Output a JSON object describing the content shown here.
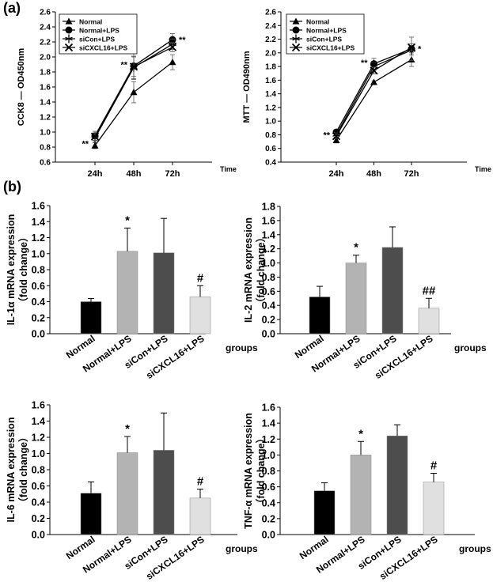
{
  "panels": {
    "a": "(a)",
    "b": "(b)"
  },
  "colors": {
    "normal": "#000000",
    "normal_lps": "#b3b3b3",
    "sicon_lps": "#4d4d4d",
    "sicxcl16_lps": "#e0e0e0"
  },
  "chart_data": [
    {
      "type": "line",
      "ylabel": "CCK8 — OD450nm",
      "xlabel": "Time",
      "categories": [
        "24h",
        "48h",
        "72h"
      ],
      "ylim": [
        0.6,
        2.6
      ],
      "yticks": [
        "0.6",
        "0.8",
        "1.0",
        "1.2",
        "1.4",
        "1.6",
        "1.8",
        "2.0",
        "2.2",
        "2.4",
        "2.6"
      ],
      "legend_position": "top-left",
      "series": [
        {
          "name": "Normal",
          "marker": "triangle",
          "values": [
            0.82,
            1.53,
            1.93
          ],
          "errors": [
            0.04,
            0.14,
            0.1
          ]
        },
        {
          "name": "Normal+LPS",
          "marker": "circle",
          "values": [
            0.95,
            1.88,
            2.23
          ],
          "errors": [
            0.06,
            0.18,
            0.08
          ]
        },
        {
          "name": "siCon+LPS",
          "marker": "star",
          "values": [
            0.92,
            1.86,
            2.17
          ],
          "errors": [
            0.05,
            0.15,
            0.07
          ]
        },
        {
          "name": "siCXCL16+LPS",
          "marker": "x",
          "values": [
            0.94,
            1.87,
            2.13
          ],
          "errors": [
            0.05,
            0.13,
            0.06
          ]
        }
      ],
      "annotations": [
        {
          "text": "**",
          "x": "24h",
          "y": 0.85,
          "side": "left"
        },
        {
          "text": "**",
          "x": "48h",
          "y": 1.9,
          "side": "left"
        },
        {
          "text": "**",
          "x": "72h",
          "y": 2.23,
          "side": "right"
        }
      ]
    },
    {
      "type": "line",
      "ylabel": "MTT — OD490nm",
      "xlabel": "Time",
      "categories": [
        "24h",
        "48h",
        "72h"
      ],
      "ylim": [
        0.4,
        2.6
      ],
      "yticks": [
        "0.4",
        "0.6",
        "0.8",
        "1.0",
        "1.2",
        "1.4",
        "1.6",
        "1.8",
        "2.0",
        "2.2",
        "2.4",
        "2.6"
      ],
      "legend_position": "top-left",
      "series": [
        {
          "name": "Normal",
          "marker": "triangle",
          "values": [
            0.72,
            1.57,
            1.9
          ],
          "errors": [
            0.04,
            0.02,
            0.1
          ]
        },
        {
          "name": "Normal+LPS",
          "marker": "circle",
          "values": [
            0.84,
            1.84,
            2.06
          ],
          "errors": [
            0.03,
            0.08,
            0.17
          ]
        },
        {
          "name": "siCon+LPS",
          "marker": "star",
          "values": [
            0.8,
            1.8,
            2.04
          ],
          "errors": [
            0.03,
            0.06,
            0.07
          ]
        },
        {
          "name": "siCXCL16+LPS",
          "marker": "x",
          "values": [
            0.78,
            1.74,
            2.08
          ],
          "errors": [
            0.03,
            0.05,
            0.05
          ]
        }
      ],
      "annotations": [
        {
          "text": "**",
          "x": "24h",
          "y": 0.8,
          "side": "left"
        },
        {
          "text": "**",
          "x": "48h",
          "y": 1.86,
          "side": "left"
        },
        {
          "text": "*",
          "x": "72h",
          "y": 2.06,
          "side": "right"
        }
      ]
    },
    {
      "type": "bar",
      "ylabel": "IL-1α mRNA expression",
      "ylabel2": "（fold change）",
      "xlabel": "groups",
      "categories": [
        "Normal",
        "Normal+LPS",
        "siCon+LPS",
        "siCXCL16+LPS"
      ],
      "values": [
        0.4,
        1.03,
        1.01,
        0.46
      ],
      "errors": [
        0.04,
        0.29,
        0.43,
        0.14
      ],
      "annotations": [
        "",
        "*",
        "",
        "#"
      ],
      "ylim": [
        0,
        1.6
      ],
      "yticks": [
        "0.0",
        "0.2",
        "0.4",
        "0.6",
        "0.8",
        "1.0",
        "1.2",
        "1.4",
        "1.6"
      ]
    },
    {
      "type": "bar",
      "ylabel": "IL-2 mRNA expression",
      "ylabel2": "（fold change）",
      "xlabel": "groups",
      "categories": [
        "Normal",
        "Normal+LPS",
        "siCon+LPS",
        "siCXCL16+LPS"
      ],
      "values": [
        0.52,
        1.0,
        1.22,
        0.36
      ],
      "errors": [
        0.15,
        0.11,
        0.29,
        0.14
      ],
      "annotations": [
        "",
        "*",
        "",
        "##"
      ],
      "ylim": [
        0,
        1.8
      ],
      "yticks": [
        "0.0",
        "0.2",
        "0.4",
        "0.6",
        "0.8",
        "1.0",
        "1.2",
        "1.4",
        "1.6",
        "1.8"
      ]
    },
    {
      "type": "bar",
      "ylabel": "IL-6 mRNA expression",
      "ylabel2": "（fold change）",
      "xlabel": "groups",
      "categories": [
        "Normal",
        "Normal+LPS",
        "siCon+LPS",
        "siCXCL16+LPS"
      ],
      "values": [
        0.51,
        1.01,
        1.04,
        0.45
      ],
      "errors": [
        0.14,
        0.2,
        0.46,
        0.11
      ],
      "annotations": [
        "",
        "*",
        "",
        "#"
      ],
      "ylim": [
        0,
        1.6
      ],
      "yticks": [
        "0.0",
        "0.2",
        "0.4",
        "0.6",
        "0.8",
        "1.0",
        "1.2",
        "1.4",
        "1.6"
      ]
    },
    {
      "type": "bar",
      "ylabel": "TNF-α  mRNA expression",
      "ylabel2": "（fold change）",
      "xlabel": "groups",
      "categories": [
        "Normal",
        "Normal+LPS",
        "siCon+LPS",
        "siCXCL16+LPS"
      ],
      "values": [
        0.55,
        1.0,
        1.24,
        0.66
      ],
      "errors": [
        0.1,
        0.17,
        0.14,
        0.11
      ],
      "annotations": [
        "",
        "*",
        "",
        "#"
      ],
      "ylim": [
        0,
        1.6
      ],
      "yticks": [
        "0.0",
        "0.2",
        "0.4",
        "0.6",
        "0.8",
        "1.0",
        "1.2",
        "1.4",
        "1.6"
      ]
    }
  ]
}
